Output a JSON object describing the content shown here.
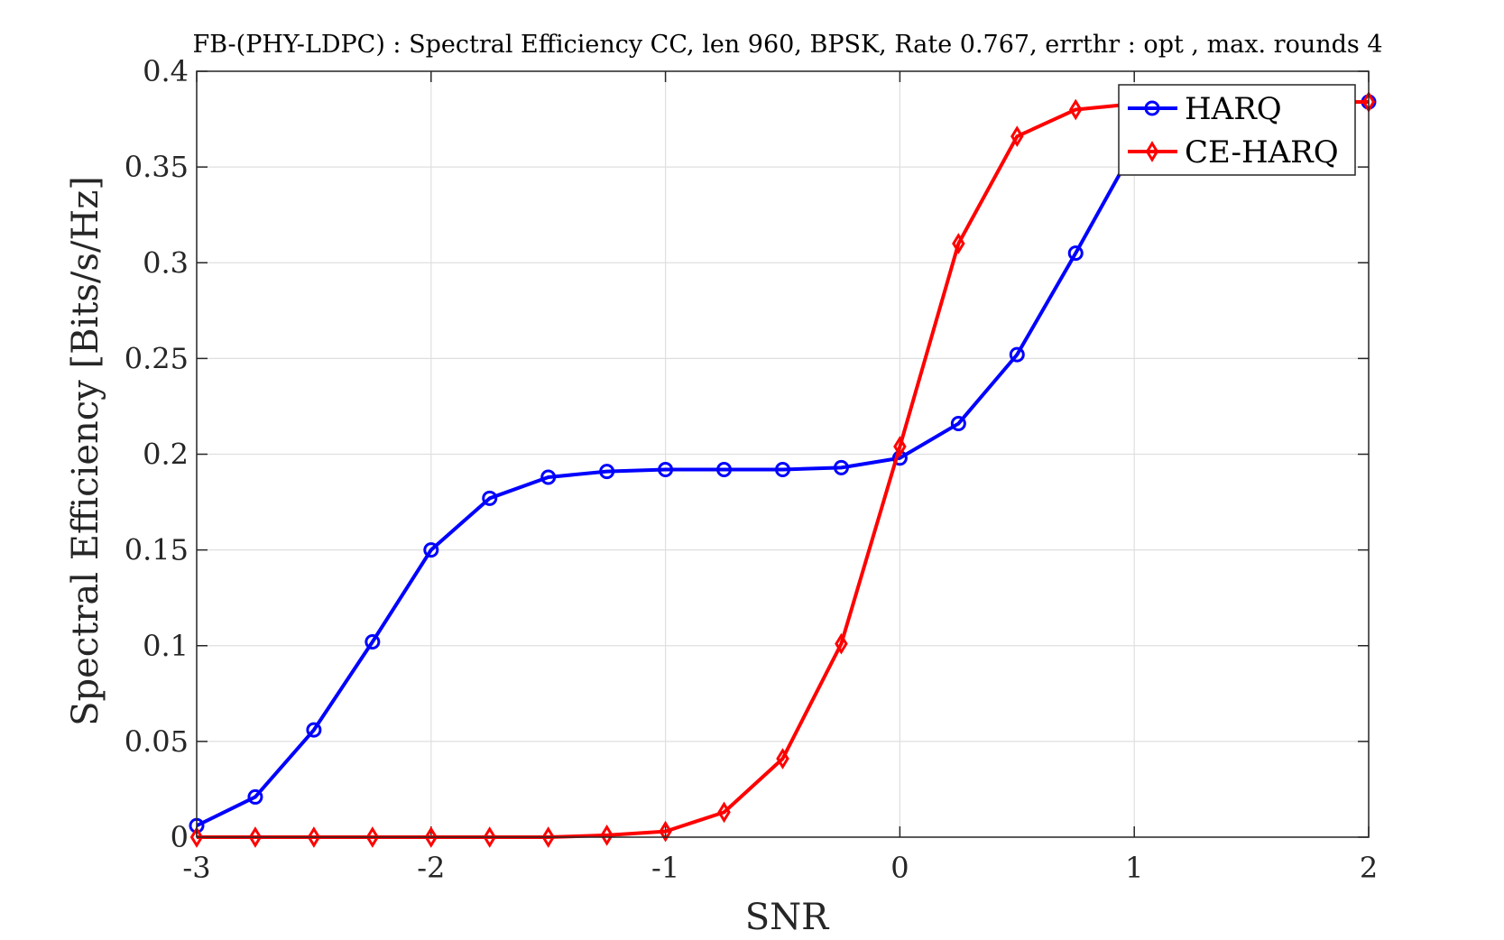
{
  "chart_data": {
    "type": "line",
    "title": "FB-(PHY-LDPC) : Spectral Efficiency CC, len 960, BPSK, Rate 0.767, errthr : opt , max. rounds 4",
    "xlabel": "SNR",
    "ylabel": "Spectral Efficiency [Bits/s/Hz]",
    "xlim": [
      -3,
      2
    ],
    "ylim": [
      0,
      0.4
    ],
    "xticks": [
      "-3",
      "-2",
      "-1",
      "0",
      "1",
      "2"
    ],
    "yticks": [
      "0",
      "0.05",
      "0.1",
      "0.15",
      "0.2",
      "0.25",
      "0.3",
      "0.35",
      "0.4"
    ],
    "grid": true,
    "legend_position": "top-right",
    "x": [
      -3,
      -2.75,
      -2.5,
      -2.25,
      -2,
      -1.75,
      -1.5,
      -1.25,
      -1,
      -0.75,
      -0.5,
      -0.25,
      0,
      0.25,
      0.5,
      0.75,
      1,
      1.25,
      1.5,
      1.75,
      2
    ],
    "series": [
      {
        "name": "HARQ",
        "color": "#0000ff",
        "marker": "circle",
        "values": [
          0.006,
          0.021,
          0.056,
          0.102,
          0.15,
          0.177,
          0.188,
          0.191,
          0.192,
          0.192,
          0.192,
          0.193,
          0.198,
          0.216,
          0.252,
          0.305,
          0.36,
          0.382,
          0.384,
          0.384,
          0.384
        ]
      },
      {
        "name": "CE-HARQ",
        "color": "#ff0000",
        "marker": "diamond",
        "values": [
          0,
          0,
          0,
          0,
          0,
          0,
          0,
          0.001,
          0.003,
          0.013,
          0.041,
          0.101,
          0.204,
          0.31,
          0.366,
          0.38,
          0.383,
          0.384,
          0.384,
          0.384,
          0.384
        ]
      }
    ]
  }
}
